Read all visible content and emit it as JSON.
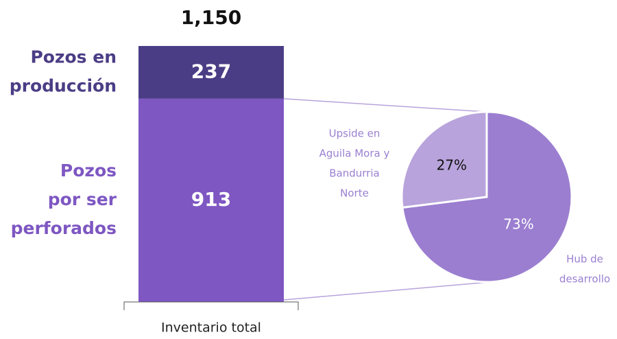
{
  "chart_data": [
    {
      "type": "stacked_bar",
      "categories": [
        "Inventario total"
      ],
      "series": [
        {
          "name": "Pozos en\nproducción",
          "color": "#4b3d85",
          "values": [
            237
          ]
        },
        {
          "name": "Pozos\npor ser\nperforados",
          "color": "#7e57c2",
          "values": [
            913
          ]
        }
      ],
      "total": {
        "value": 1150,
        "label": "1,150"
      }
    },
    {
      "type": "pie",
      "categories": [
        "Upside en\nAguila Mora y\nBandurria\nNorte",
        "Hub de\ndesarrollo"
      ],
      "values": [
        27,
        73
      ],
      "value_labels": [
        "27%",
        "73%"
      ],
      "colors": [
        "#b8a3dc",
        "#9b7ed0"
      ]
    }
  ]
}
